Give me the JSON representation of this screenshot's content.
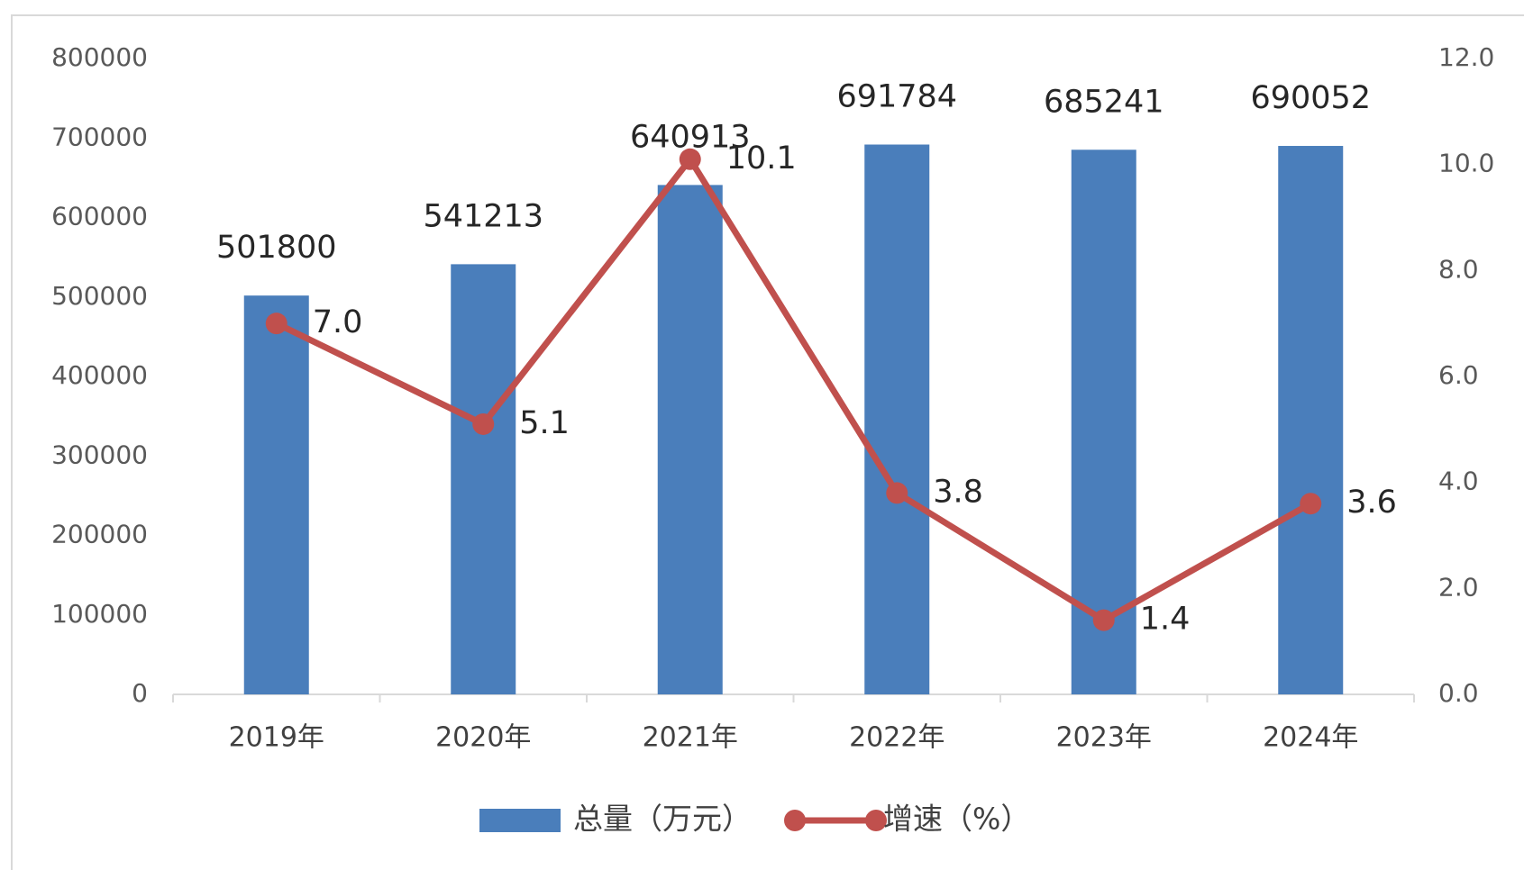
{
  "chart_data": {
    "type": "bar",
    "categories": [
      "2019年",
      "2020年",
      "2021年",
      "2022年",
      "2023年",
      "2024年"
    ],
    "series": [
      {
        "name": "总量（万元）",
        "type": "bar",
        "color": "#4a7ebb",
        "values": [
          501800,
          541213,
          640913,
          691784,
          685241,
          690052
        ]
      },
      {
        "name": "增速（%）",
        "type": "line",
        "axis": "y2",
        "color": "#c0504d",
        "values": [
          7.0,
          5.1,
          10.1,
          3.8,
          1.4,
          3.6
        ],
        "value_labels": [
          "7.0",
          "5.1",
          "10.1",
          "3.8",
          "1.4",
          "3.6"
        ]
      }
    ],
    "ylim": [
      0,
      800000
    ],
    "yticks": [
      0,
      100000,
      200000,
      300000,
      400000,
      500000,
      600000,
      700000,
      800000
    ],
    "y2lim": [
      0,
      12
    ],
    "y2ticks": [
      {
        "value": 0,
        "label": "0.0"
      },
      {
        "value": 2,
        "label": "2.0"
      },
      {
        "value": 4,
        "label": "4.0"
      },
      {
        "value": 6,
        "label": "6.0"
      },
      {
        "value": 8,
        "label": "8.0"
      },
      {
        "value": 10,
        "label": "10.0"
      },
      {
        "value": 12,
        "label": "12.0"
      }
    ],
    "legend": "bottom"
  }
}
